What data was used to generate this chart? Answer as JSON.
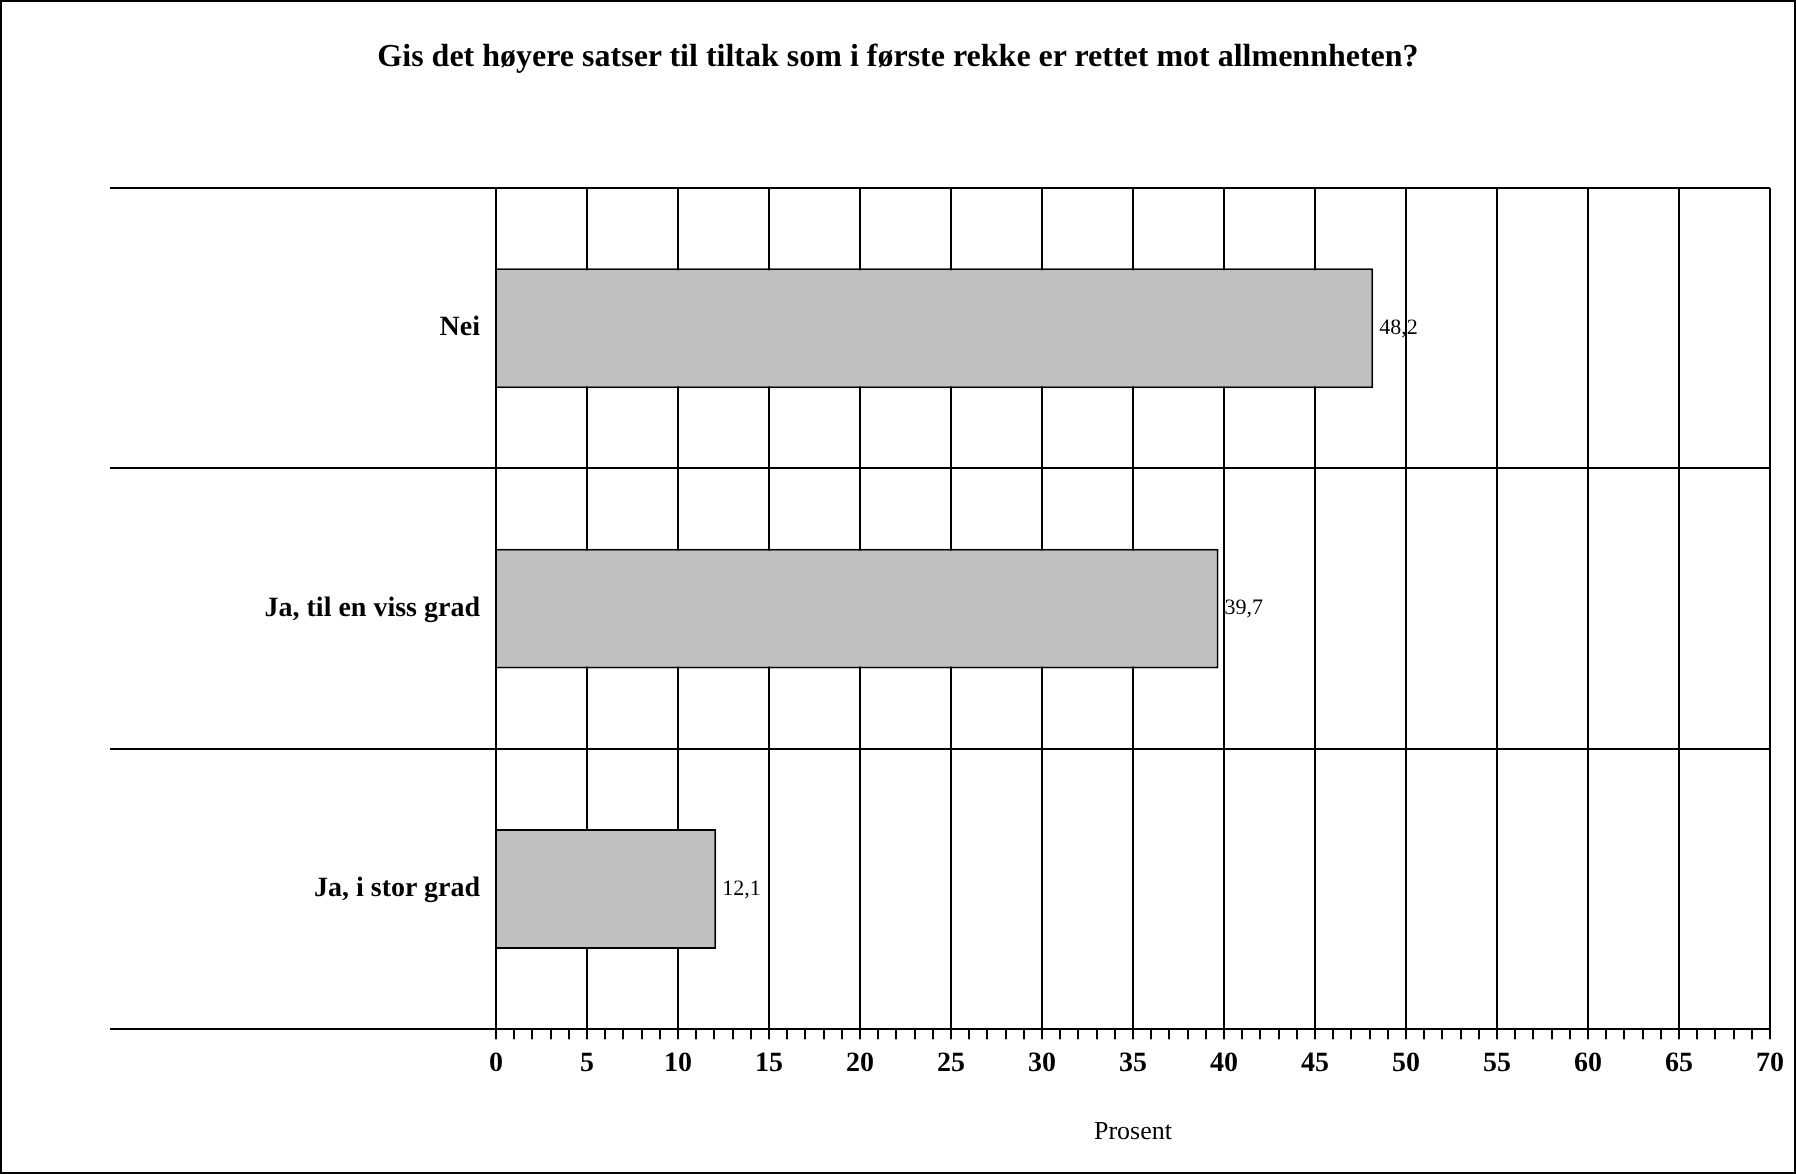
{
  "chart_data": {
    "type": "bar",
    "orientation": "horizontal",
    "title": "Gis det høyere satser til tiltak som i første rekke er rettet mot allmennheten?",
    "xlabel": "Prosent",
    "categories": [
      "Nei",
      "Ja, til en viss grad",
      "Ja, i stor grad"
    ],
    "values": [
      48.2,
      39.7,
      12.1
    ],
    "value_labels": [
      "48,2",
      "39,7",
      "12,1"
    ],
    "color": "#c0c0c0",
    "xlim": [
      0,
      70
    ],
    "xticks": [
      0,
      {
        "value": 1,
        "label": null
      },
      {
        "value": 2,
        "label": null
      },
      {
        "value": 3,
        "label": null
      },
      {
        "value": 4,
        "label": null
      },
      5,
      {
        "value": 6,
        "label": null
      },
      {
        "value": 7,
        "label": null
      },
      {
        "value": 8,
        "label": null
      },
      {
        "value": 9,
        "label": null
      },
      10,
      {
        "value": 11,
        "label": null
      },
      {
        "value": 12,
        "label": null
      },
      {
        "value": 13,
        "label": null
      },
      {
        "value": 14,
        "label": null
      },
      15,
      {
        "value": 16,
        "label": null
      },
      {
        "value": 17,
        "label": null
      },
      {
        "value": 18,
        "label": null
      },
      {
        "value": 19,
        "label": null
      },
      20,
      {
        "value": 21,
        "label": null
      },
      {
        "value": 22,
        "label": null
      },
      {
        "value": 23,
        "label": null
      },
      {
        "value": 24,
        "label": null
      },
      25,
      {
        "value": 26,
        "label": null
      },
      {
        "value": 27,
        "label": null
      },
      {
        "value": 28,
        "label": null
      },
      {
        "value": 29,
        "label": null
      },
      30,
      {
        "value": 31,
        "label": null
      },
      {
        "value": 32,
        "label": null
      },
      {
        "value": 33,
        "label": null
      },
      {
        "value": 34,
        "label": null
      },
      35,
      {
        "value": 36,
        "label": null
      },
      {
        "value": 37,
        "label": null
      },
      {
        "value": 38,
        "label": null
      },
      {
        "value": 39,
        "label": null
      },
      40,
      {
        "value": 41,
        "label": null
      },
      {
        "value": 42,
        "label": null
      },
      {
        "value": 43,
        "label": null
      },
      {
        "value": 44,
        "label": null
      },
      45,
      {
        "value": 46,
        "label": null
      },
      {
        "value": 47,
        "label": null
      },
      {
        "value": 48,
        "label": null
      },
      {
        "value": 49,
        "label": null
      },
      50,
      {
        "value": 51,
        "label": null
      },
      {
        "value": 52,
        "label": null
      },
      {
        "value": 53,
        "label": null
      },
      {
        "value": 54,
        "label": null
      },
      55,
      {
        "value": 56,
        "label": null
      },
      {
        "value": 57,
        "label": null
      },
      {
        "value": 58,
        "label": null
      },
      {
        "value": 59,
        "label": null
      },
      60,
      {
        "value": 61,
        "label": null
      },
      {
        "value": 62,
        "label": null
      },
      {
        "value": 63,
        "label": null
      },
      {
        "value": 64,
        "label": null
      },
      65,
      {
        "value": 66,
        "label": null
      },
      {
        "value": 67,
        "label": null
      },
      {
        "value": 68,
        "label": null
      },
      {
        "value": 69,
        "label": null
      },
      70
    ],
    "grid": true,
    "legend": false
  }
}
